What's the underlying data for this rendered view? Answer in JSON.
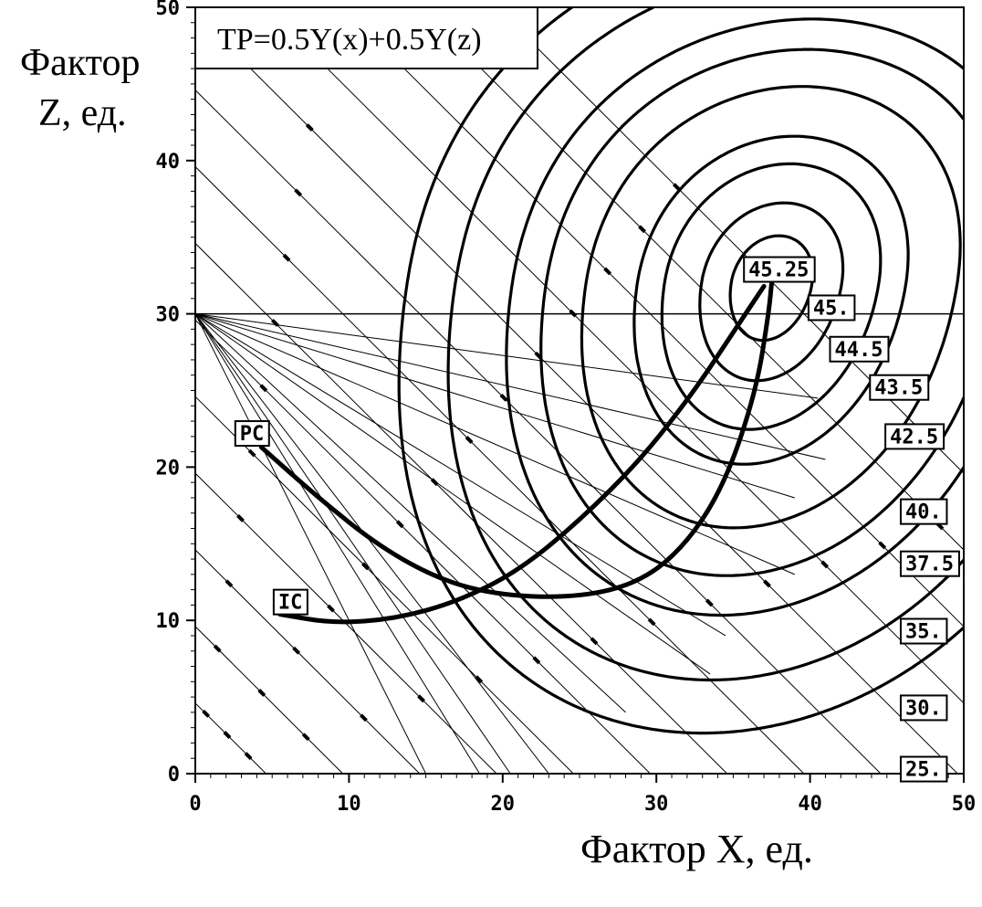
{
  "chart_data": {
    "type": "contour",
    "title": "TP=0.5Y(x)+0.5Y(z)",
    "xlabel": "Фактор X, ед.",
    "ylabel_line1": "Фактор",
    "ylabel_line2": "Z, ед.",
    "xlim": [
      0,
      50
    ],
    "ylim": [
      0,
      50
    ],
    "x_ticks": [
      "0",
      "10",
      "20",
      "30",
      "40",
      "50"
    ],
    "y_ticks": [
      "0",
      "10",
      "20",
      "30",
      "40",
      "50"
    ],
    "optimum": {
      "x": 37.5,
      "z": 32,
      "value": 45.25
    },
    "contour_levels": [
      {
        "label": "45.25",
        "value": 45.25
      },
      {
        "label": "45.",
        "value": 45.0
      },
      {
        "label": "44.5",
        "value": 44.5
      },
      {
        "label": "43.5",
        "value": 43.5
      },
      {
        "label": "42.5",
        "value": 42.5
      },
      {
        "label": "40.",
        "value": 40.0
      },
      {
        "label": "37.5",
        "value": 37.5
      },
      {
        "label": "35.",
        "value": 35.0
      },
      {
        "label": "30.",
        "value": 30.0
      },
      {
        "label": "25.",
        "value": 25.0
      }
    ],
    "horizontal_reference_z": 30,
    "fan_origin": {
      "x": 0,
      "z": 30
    },
    "fan_endpoints": [
      [
        40.5,
        24.5
      ],
      [
        41,
        20.5
      ],
      [
        39,
        18
      ],
      [
        39,
        13
      ],
      [
        34.5,
        9
      ],
      [
        33.5,
        6.5
      ],
      [
        28,
        4
      ],
      [
        23,
        0
      ],
      [
        20.5,
        0
      ],
      [
        18.5,
        0
      ],
      [
        15,
        0
      ]
    ],
    "budget_lines_intercepts": [
      4.6,
      9.6,
      14.6,
      19.6,
      24.6,
      29.6,
      34.6,
      39.6,
      44.6,
      49.6,
      54.6,
      59.6,
      64.6,
      69.6
    ],
    "curves": [
      {
        "name": "PC",
        "points": [
          [
            4.3,
            21.3
          ],
          [
            8,
            18
          ],
          [
            12,
            14.8
          ],
          [
            16,
            12.6
          ],
          [
            20,
            11.6
          ],
          [
            25,
            11.5
          ],
          [
            29,
            12.5
          ],
          [
            32,
            15
          ],
          [
            34.5,
            19
          ],
          [
            36.5,
            25
          ],
          [
            37.3,
            30
          ],
          [
            37.5,
            32
          ]
        ]
      },
      {
        "name": "IC",
        "points": [
          [
            5.5,
            10.4
          ],
          [
            9,
            9.8
          ],
          [
            13,
            10.1
          ],
          [
            17,
            11.2
          ],
          [
            21,
            13.2
          ],
          [
            25,
            16.5
          ],
          [
            29,
            20.5
          ],
          [
            32.5,
            25.0
          ],
          [
            35,
            28.8
          ],
          [
            37,
            31.8
          ]
        ]
      }
    ]
  }
}
